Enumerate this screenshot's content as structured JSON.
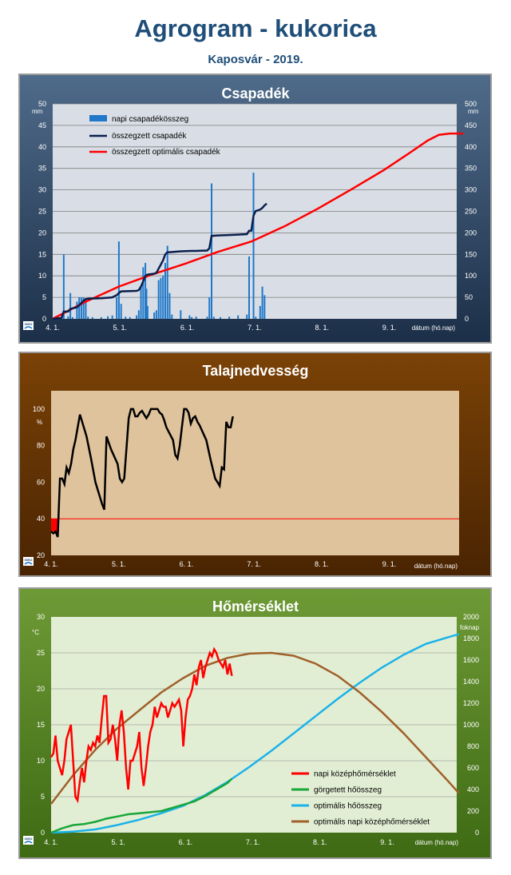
{
  "header": {
    "title": "Agrogram - kukorica",
    "subtitle": "Kaposvár  - 2019."
  },
  "colors": {
    "daily_precip": "#1f78c8",
    "cum_precip": "#0b1f4e",
    "opt_precip": "#ff0000",
    "soil_moisture": "#000000",
    "soil_threshold": "#ff0000",
    "daily_temp": "#ff0000",
    "rolling_heat": "#1aa63a",
    "opt_heat": "#1ab2ea",
    "opt_temp": "#a0602a"
  },
  "logo_text": "OMSZ",
  "chart_data": [
    {
      "type": "bar+line",
      "title": "Csapadék",
      "y_unit": "mm",
      "x_label": "dátum (hó.nap)",
      "x_ticks": [
        "4. 1.",
        "5. 1.",
        "6. 1.",
        "7. 1.",
        "8. 1.",
        "9. 1."
      ],
      "x_range_days": [
        0,
        180
      ],
      "ylim_left": [
        0,
        50
      ],
      "ylim_right": [
        0,
        500
      ],
      "y_ticks_left": [
        "0",
        "5",
        "10",
        "15",
        "20",
        "25",
        "30",
        "35",
        "40",
        "45",
        "50"
      ],
      "y_ticks_right": [
        "0",
        "50",
        "100",
        "150",
        "200",
        "250",
        "300",
        "350",
        "400",
        "450",
        "500"
      ],
      "legend": [
        "napi csapadékösszeg",
        "összegzett csapadék",
        "összegzett optimális csapadék"
      ],
      "grid": true,
      "daily_bars": [
        [
          1,
          0.5
        ],
        [
          5,
          15
        ],
        [
          7,
          0.6
        ],
        [
          8,
          6
        ],
        [
          9,
          0.4
        ],
        [
          11,
          4
        ],
        [
          12,
          5
        ],
        [
          13,
          5
        ],
        [
          14,
          5
        ],
        [
          15,
          4.5
        ],
        [
          16,
          0.5
        ],
        [
          18,
          0.4
        ],
        [
          22,
          0.4
        ],
        [
          25,
          0.6
        ],
        [
          27,
          0.8
        ],
        [
          29,
          5
        ],
        [
          30,
          18
        ],
        [
          31,
          3.5
        ],
        [
          33,
          0.5
        ],
        [
          35,
          0.4
        ],
        [
          38,
          0.8
        ],
        [
          39,
          2
        ],
        [
          40,
          7.5
        ],
        [
          41,
          12
        ],
        [
          42,
          13
        ],
        [
          42.5,
          7
        ],
        [
          43,
          3
        ],
        [
          46,
          1.5
        ],
        [
          47,
          2
        ],
        [
          48,
          9
        ],
        [
          49,
          9.5
        ],
        [
          50,
          10
        ],
        [
          51,
          13
        ],
        [
          52,
          17
        ],
        [
          53,
          6
        ],
        [
          54,
          1
        ],
        [
          58,
          2
        ],
        [
          62,
          0.8
        ],
        [
          63,
          0.4
        ],
        [
          65,
          0.5
        ],
        [
          70,
          0.5
        ],
        [
          71,
          5
        ],
        [
          72,
          31.5
        ],
        [
          73,
          0.5
        ],
        [
          76,
          0.4
        ],
        [
          80,
          0.5
        ],
        [
          84,
          0.8
        ],
        [
          88,
          1
        ],
        [
          89,
          14.5
        ],
        [
          91,
          34
        ],
        [
          92,
          0.5
        ],
        [
          94,
          3
        ],
        [
          95,
          7.5
        ],
        [
          96,
          5.5
        ]
      ],
      "cum_precip": [
        [
          0,
          0
        ],
        [
          4,
          2
        ],
        [
          5,
          17
        ],
        [
          6,
          17
        ],
        [
          7,
          17
        ],
        [
          8,
          23
        ],
        [
          11,
          27
        ],
        [
          12,
          32
        ],
        [
          13,
          37
        ],
        [
          14,
          42
        ],
        [
          15,
          46
        ],
        [
          16,
          47
        ],
        [
          22,
          48
        ],
        [
          25,
          49
        ],
        [
          27,
          50
        ],
        [
          29,
          55
        ],
        [
          30,
          60
        ],
        [
          31,
          64
        ],
        [
          38,
          65
        ],
        [
          39,
          67
        ],
        [
          40,
          75
        ],
        [
          41,
          87
        ],
        [
          42,
          100
        ],
        [
          43,
          103
        ],
        [
          46,
          105
        ],
        [
          47,
          107
        ],
        [
          48,
          117
        ],
        [
          49,
          126
        ],
        [
          50,
          136
        ],
        [
          51,
          150
        ],
        [
          52,
          155
        ],
        [
          53,
          155
        ],
        [
          58,
          157
        ],
        [
          63,
          158
        ],
        [
          65,
          158
        ],
        [
          70,
          159
        ],
        [
          71,
          164
        ],
        [
          72,
          193
        ],
        [
          75,
          194
        ],
        [
          80,
          195
        ],
        [
          84,
          196
        ],
        [
          88,
          197
        ],
        [
          89,
          205
        ],
        [
          90,
          205
        ],
        [
          91,
          240
        ],
        [
          92,
          251
        ],
        [
          94,
          254
        ],
        [
          95,
          258
        ],
        [
          96,
          264
        ],
        [
          97,
          268
        ]
      ],
      "opt_precip": [
        [
          0,
          0
        ],
        [
          15,
          40
        ],
        [
          30,
          75
        ],
        [
          45,
          103
        ],
        [
          60,
          128
        ],
        [
          75,
          156
        ],
        [
          90,
          180
        ],
        [
          105,
          215
        ],
        [
          120,
          256
        ],
        [
          135,
          300
        ],
        [
          150,
          346
        ],
        [
          160,
          380
        ],
        [
          170,
          415
        ],
        [
          175,
          428
        ],
        [
          180,
          431
        ],
        [
          186,
          431
        ]
      ]
    },
    {
      "type": "line",
      "title": "Talajnedvesség",
      "y_unit": "%",
      "x_label": "dátum (hó.nap)",
      "x_ticks": [
        "4. 1.",
        "5. 1.",
        "6. 1.",
        "7. 1.",
        "8. 1.",
        "9. 1."
      ],
      "x_range_days": [
        0,
        180
      ],
      "ylim": [
        20,
        110
      ],
      "y_ticks": [
        "20",
        "40",
        "60",
        "80",
        "100"
      ],
      "threshold": 40,
      "grid": false,
      "soil_moisture": [
        [
          0,
          33
        ],
        [
          1,
          32
        ],
        [
          2,
          33
        ],
        [
          3,
          30
        ],
        [
          4,
          62
        ],
        [
          5,
          62
        ],
        [
          6,
          59
        ],
        [
          7,
          68
        ],
        [
          8,
          65
        ],
        [
          9,
          70
        ],
        [
          10,
          78
        ],
        [
          11,
          83
        ],
        [
          12,
          90
        ],
        [
          13,
          97
        ],
        [
          14,
          93
        ],
        [
          16,
          85
        ],
        [
          18,
          73
        ],
        [
          20,
          60
        ],
        [
          23,
          48
        ],
        [
          24,
          45
        ],
        [
          25,
          85
        ],
        [
          27,
          78
        ],
        [
          30,
          70
        ],
        [
          31,
          62
        ],
        [
          32,
          60
        ],
        [
          33,
          62
        ],
        [
          35,
          95
        ],
        [
          36,
          100
        ],
        [
          37,
          100
        ],
        [
          38,
          96
        ],
        [
          39,
          96
        ],
        [
          40,
          98
        ],
        [
          41,
          99
        ],
        [
          42,
          97
        ],
        [
          43,
          95
        ],
        [
          44,
          97
        ],
        [
          45,
          100
        ],
        [
          48,
          100
        ],
        [
          49,
          98
        ],
        [
          50,
          97
        ],
        [
          51,
          94
        ],
        [
          52,
          90
        ],
        [
          55,
          83
        ],
        [
          56,
          75
        ],
        [
          57,
          73
        ],
        [
          58,
          80
        ],
        [
          59,
          90
        ],
        [
          60,
          100
        ],
        [
          61,
          100
        ],
        [
          62,
          98
        ],
        [
          63,
          92
        ],
        [
          64,
          95
        ],
        [
          65,
          96
        ],
        [
          66,
          93
        ],
        [
          67,
          91
        ],
        [
          70,
          83
        ],
        [
          72,
          72
        ],
        [
          74,
          62
        ],
        [
          75,
          60
        ],
        [
          76,
          58
        ],
        [
          77,
          68
        ],
        [
          78,
          67
        ],
        [
          79,
          93
        ],
        [
          80,
          90
        ],
        [
          81,
          90
        ],
        [
          82,
          96
        ]
      ]
    },
    {
      "type": "line",
      "title": "Hőmérséklet",
      "y_unit": "°C",
      "y_unit_right": "foknap",
      "x_label": "dátum (hó.nap)",
      "x_ticks": [
        "4. 1.",
        "5. 1.",
        "6. 1.",
        "7. 1.",
        "8. 1.",
        "9. 1."
      ],
      "x_range_days": [
        0,
        180
      ],
      "ylim_left": [
        0,
        30
      ],
      "ylim_right": [
        0,
        2000
      ],
      "y_ticks_left": [
        "0",
        "5",
        "10",
        "15",
        "20",
        "25",
        "30"
      ],
      "y_ticks_right": [
        "0",
        "200",
        "400",
        "600",
        "800",
        "1000",
        "1200",
        "1400",
        "1600",
        "1800",
        "2000"
      ],
      "legend": [
        "napi középhőmérséklet",
        "görgetett hőösszeg",
        "optimális hőösszeg",
        "optimális napi középhőmérséklet"
      ],
      "grid": true,
      "daily_temp": [
        [
          0,
          10.5
        ],
        [
          1,
          11
        ],
        [
          2,
          13.5
        ],
        [
          3,
          10
        ],
        [
          4,
          9
        ],
        [
          5,
          8
        ],
        [
          6,
          10
        ],
        [
          7,
          13
        ],
        [
          8,
          14
        ],
        [
          9,
          15
        ],
        [
          10,
          10
        ],
        [
          11,
          5
        ],
        [
          12,
          4.5
        ],
        [
          13,
          7
        ],
        [
          14,
          9
        ],
        [
          15,
          7
        ],
        [
          16,
          10
        ],
        [
          17,
          12
        ],
        [
          18,
          11.5
        ],
        [
          19,
          12.5
        ],
        [
          20,
          12
        ],
        [
          21,
          13.5
        ],
        [
          22,
          12.5
        ],
        [
          23,
          16
        ],
        [
          24,
          19
        ],
        [
          25,
          19
        ],
        [
          26,
          12.5
        ],
        [
          27,
          13
        ],
        [
          28,
          15
        ],
        [
          29,
          13
        ],
        [
          30,
          10
        ],
        [
          31,
          15
        ],
        [
          32,
          17
        ],
        [
          33,
          14
        ],
        [
          34,
          9
        ],
        [
          35,
          6
        ],
        [
          36,
          10
        ],
        [
          37,
          10
        ],
        [
          38,
          11
        ],
        [
          39,
          12
        ],
        [
          40,
          14
        ],
        [
          41,
          9
        ],
        [
          42,
          6.5
        ],
        [
          43,
          9
        ],
        [
          44,
          12
        ],
        [
          45,
          14
        ],
        [
          46,
          15
        ],
        [
          47,
          17.5
        ],
        [
          48,
          16
        ],
        [
          49,
          17
        ],
        [
          50,
          18
        ],
        [
          51,
          17.5
        ],
        [
          52,
          17.5
        ],
        [
          53,
          16
        ],
        [
          54,
          17
        ],
        [
          55,
          18
        ],
        [
          56,
          17.5
        ],
        [
          57,
          18
        ],
        [
          58,
          18.5
        ],
        [
          59,
          17
        ],
        [
          60,
          12
        ],
        [
          61,
          16
        ],
        [
          62,
          18.5
        ],
        [
          63,
          19
        ],
        [
          64,
          20
        ],
        [
          65,
          22
        ],
        [
          66,
          20.5
        ],
        [
          67,
          23
        ],
        [
          68,
          24
        ],
        [
          69,
          21.5
        ],
        [
          70,
          23
        ],
        [
          71,
          24
        ],
        [
          72,
          25
        ],
        [
          73,
          24.5
        ],
        [
          74,
          25.5
        ],
        [
          75,
          25
        ],
        [
          76,
          24
        ],
        [
          77,
          23.5
        ],
        [
          78,
          23
        ],
        [
          79,
          24
        ],
        [
          80,
          22
        ],
        [
          81,
          23.5
        ],
        [
          82,
          21.8
        ]
      ],
      "rolling_heat": [
        [
          0,
          0
        ],
        [
          5,
          40
        ],
        [
          10,
          70
        ],
        [
          15,
          80
        ],
        [
          20,
          100
        ],
        [
          25,
          130
        ],
        [
          30,
          150
        ],
        [
          35,
          170
        ],
        [
          40,
          180
        ],
        [
          45,
          190
        ],
        [
          50,
          200
        ],
        [
          55,
          230
        ],
        [
          60,
          260
        ],
        [
          65,
          290
        ],
        [
          70,
          340
        ],
        [
          75,
          400
        ],
        [
          80,
          460
        ],
        [
          82,
          500
        ]
      ],
      "opt_heat": [
        [
          0,
          0
        ],
        [
          10,
          10
        ],
        [
          20,
          30
        ],
        [
          30,
          70
        ],
        [
          40,
          120
        ],
        [
          50,
          180
        ],
        [
          60,
          250
        ],
        [
          70,
          350
        ],
        [
          80,
          470
        ],
        [
          90,
          610
        ],
        [
          100,
          760
        ],
        [
          110,
          920
        ],
        [
          120,
          1080
        ],
        [
          130,
          1240
        ],
        [
          140,
          1390
        ],
        [
          150,
          1530
        ],
        [
          160,
          1650
        ],
        [
          170,
          1750
        ],
        [
          180,
          1810
        ],
        [
          185,
          1840
        ]
      ],
      "opt_temp": [
        [
          0,
          4
        ],
        [
          10,
          8
        ],
        [
          20,
          11.5
        ],
        [
          30,
          14.5
        ],
        [
          40,
          17
        ],
        [
          50,
          19.5
        ],
        [
          60,
          21.5
        ],
        [
          70,
          23.2
        ],
        [
          80,
          24.3
        ],
        [
          90,
          24.9
        ],
        [
          100,
          25
        ],
        [
          110,
          24.6
        ],
        [
          120,
          23.5
        ],
        [
          130,
          21.8
        ],
        [
          140,
          19.5
        ],
        [
          150,
          16.8
        ],
        [
          160,
          13.8
        ],
        [
          170,
          10.5
        ],
        [
          180,
          7.2
        ],
        [
          185,
          5.5
        ]
      ]
    }
  ]
}
